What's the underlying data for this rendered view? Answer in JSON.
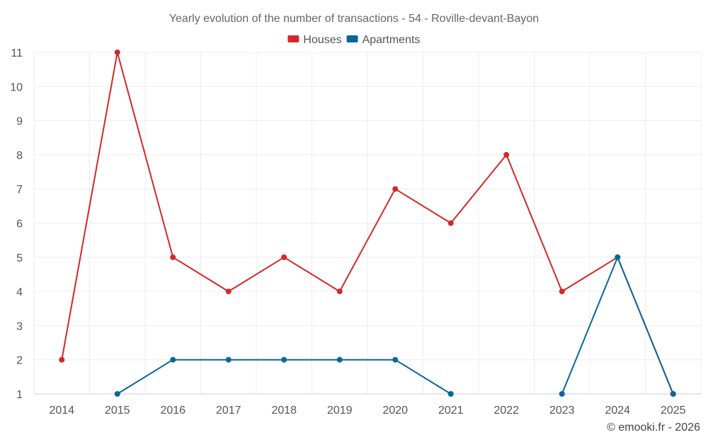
{
  "chart_data": {
    "type": "line",
    "title": "Yearly evolution of the number of transactions - 54 - Roville-devant-Bayon",
    "categories": [
      "2014",
      "2015",
      "2016",
      "2017",
      "2018",
      "2019",
      "2020",
      "2021",
      "2022",
      "2023",
      "2024",
      "2025"
    ],
    "ylim": [
      1,
      11
    ],
    "yticks": [
      1,
      2,
      3,
      4,
      5,
      6,
      7,
      8,
      9,
      10,
      11
    ],
    "grid": true,
    "legend_position": "top-center",
    "series": [
      {
        "name": "Houses",
        "color": "#d62728",
        "values": [
          2,
          11,
          5,
          4,
          5,
          4,
          7,
          6,
          8,
          4,
          5,
          1
        ]
      },
      {
        "name": "Apartments",
        "color": "#08679b",
        "values": [
          null,
          1,
          2,
          2,
          2,
          2,
          2,
          1,
          null,
          1,
          5,
          1
        ]
      }
    ],
    "credit": "© emooki.fr - 2026"
  }
}
